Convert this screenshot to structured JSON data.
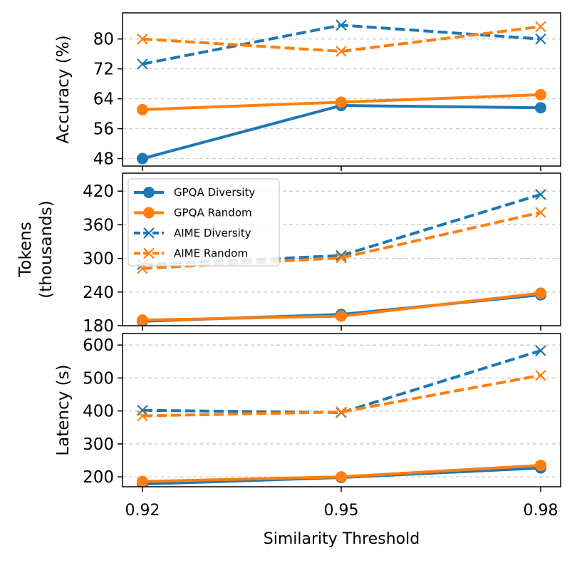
{
  "chart_data": [
    {
      "type": "line",
      "ylabel": "Accuracy (%)",
      "x": [
        0.92,
        0.95,
        0.98
      ],
      "ylim": [
        46,
        87
      ],
      "yticks": [
        48,
        56,
        64,
        72,
        80
      ],
      "grid": "y",
      "series": [
        {
          "name": "GPQA Diversity",
          "values": [
            48,
            62.2,
            61.6
          ],
          "color": "#1f77b4",
          "style": "solid",
          "marker": "circle"
        },
        {
          "name": "GPQA Random",
          "values": [
            61.1,
            63.1,
            65.1
          ],
          "color": "#ff7f0e",
          "style": "solid",
          "marker": "circle"
        },
        {
          "name": "AIME Diversity",
          "values": [
            73.3,
            83.7,
            80
          ],
          "color": "#1f77b4",
          "style": "dashed",
          "marker": "x"
        },
        {
          "name": "AIME Random",
          "values": [
            80,
            76.7,
            83.3
          ],
          "color": "#ff7f0e",
          "style": "dashed",
          "marker": "x"
        }
      ]
    },
    {
      "type": "line",
      "ylabel": "Tokens\n(thousands)",
      "ylabel_lines": [
        "Tokens",
        "(thousands)"
      ],
      "x": [
        0.92,
        0.95,
        0.98
      ],
      "ylim": [
        180,
        452
      ],
      "yticks": [
        180,
        240,
        300,
        360,
        420
      ],
      "grid": "y",
      "legend": "upper-left",
      "series": [
        {
          "name": "GPQA Diversity",
          "values": [
            188,
            200,
            235
          ],
          "color": "#1f77b4",
          "style": "solid",
          "marker": "circle"
        },
        {
          "name": "GPQA Random",
          "values": [
            190,
            197,
            238
          ],
          "color": "#ff7f0e",
          "style": "solid",
          "marker": "circle"
        },
        {
          "name": "AIME Diversity",
          "values": [
            289,
            305,
            414
          ],
          "color": "#1f77b4",
          "style": "dashed",
          "marker": "x"
        },
        {
          "name": "AIME Random",
          "values": [
            282,
            301,
            382
          ],
          "color": "#ff7f0e",
          "style": "dashed",
          "marker": "x"
        }
      ]
    },
    {
      "type": "line",
      "ylabel": "Latency (s)",
      "x": [
        0.92,
        0.95,
        0.98
      ],
      "xticks": [
        "0.92",
        "0.95",
        "0.98"
      ],
      "xlabel": "Similarity Threshold",
      "ylim": [
        170,
        635
      ],
      "yticks": [
        200,
        300,
        400,
        500,
        600
      ],
      "grid": "y",
      "series": [
        {
          "name": "GPQA Diversity",
          "values": [
            178,
            198,
            227
          ],
          "color": "#1f77b4",
          "style": "solid",
          "marker": "circle"
        },
        {
          "name": "GPQA Random",
          "values": [
            186,
            200,
            235
          ],
          "color": "#ff7f0e",
          "style": "solid",
          "marker": "circle"
        },
        {
          "name": "AIME Diversity",
          "values": [
            402,
            395,
            583
          ],
          "color": "#1f77b4",
          "style": "dashed",
          "marker": "x"
        },
        {
          "name": "AIME Random",
          "values": [
            385,
            397,
            508
          ],
          "color": "#ff7f0e",
          "style": "dashed",
          "marker": "x"
        }
      ]
    }
  ]
}
